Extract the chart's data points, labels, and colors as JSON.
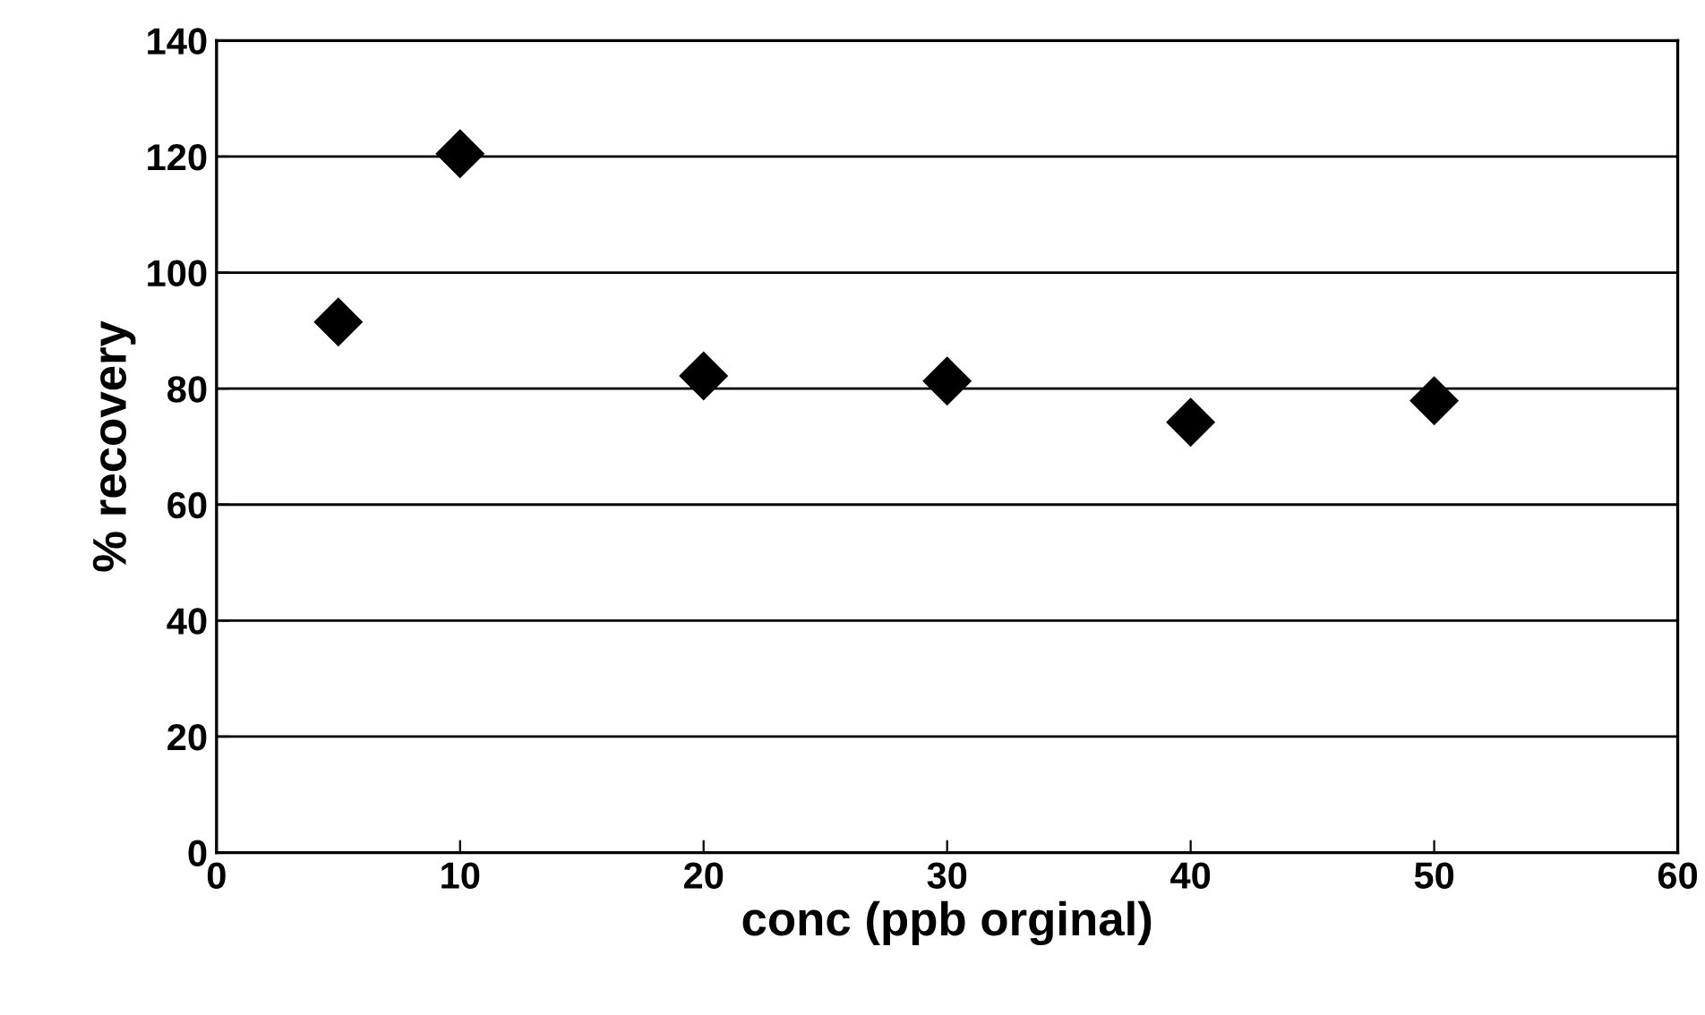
{
  "chart_data": {
    "type": "scatter",
    "xlabel": "conc (ppb orginal)",
    "ylabel": "% recovery",
    "x": [
      5,
      10,
      20,
      30,
      40,
      50
    ],
    "series": [
      {
        "color": "#000000",
        "values": [
          91.5,
          120.5,
          82.2,
          81.3,
          74.2,
          77.9
        ]
      }
    ],
    "xlim": [
      0,
      60
    ],
    "xticks": [
      0,
      10,
      20,
      30,
      40,
      50,
      60
    ],
    "ylim": [
      0,
      140
    ],
    "yticks": [
      0,
      20,
      40,
      60,
      80,
      100,
      120,
      140
    ],
    "grid": "y",
    "marker": "diamond"
  }
}
